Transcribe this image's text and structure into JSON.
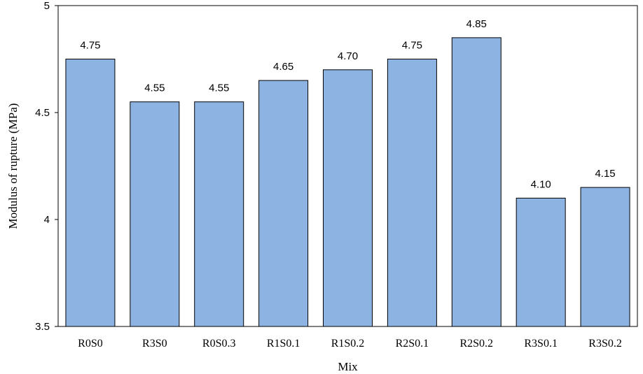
{
  "chart_data": {
    "type": "bar",
    "categories": [
      "R0S0",
      "R3S0",
      "R0S0.3",
      "R1S0.1",
      "R1S0.2",
      "R2S0.1",
      "R2S0.2",
      "R3S0.1",
      "R3S0.2"
    ],
    "values": [
      4.75,
      4.55,
      4.55,
      4.65,
      4.7,
      4.75,
      4.85,
      4.1,
      4.15
    ],
    "value_labels": [
      "4.75",
      "4.55",
      "4.55",
      "4.65",
      "4.70",
      "4.75",
      "4.85",
      "4.10",
      "4.15"
    ],
    "xlabel": "Mix",
    "ylabel": "Modulus of rupture (MPa)",
    "ylim": [
      3.5,
      5
    ],
    "yticks": [
      3.5,
      4,
      4.5,
      5
    ],
    "ytick_labels": [
      "3.5",
      "4",
      "4.5",
      "5"
    ],
    "grid": false,
    "legend": "none",
    "bar_color": "#8DB3E2",
    "bar_edge_color": "#000000"
  }
}
